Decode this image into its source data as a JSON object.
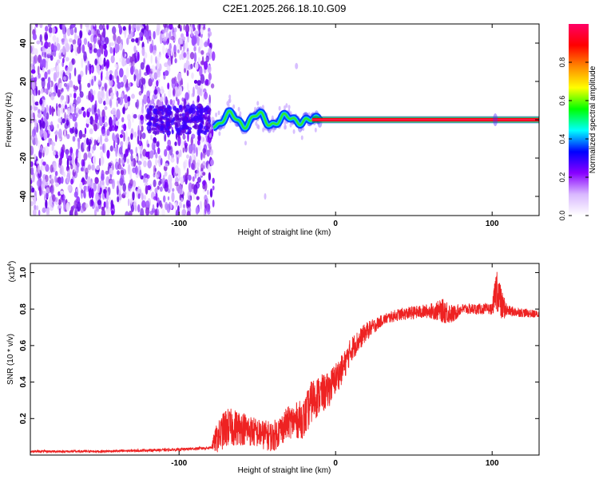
{
  "title": "C2E1.2025.266.18.10.G09",
  "chart_data": [
    {
      "type": "heatmap",
      "name": "spectrogram",
      "xlabel": "Height of straight line (km)",
      "ylabel": "Frequency (Hz)",
      "xlim": [
        -195,
        130
      ],
      "ylim": [
        -50,
        50
      ],
      "xticks": [
        -100,
        0,
        100
      ],
      "yticks": [
        -40,
        -20,
        0,
        20,
        40
      ],
      "noise_region_x": [
        -195,
        -78
      ],
      "signal_start_x": -78,
      "signal_frequency_hz": 0,
      "colorbar": {
        "label": "Normalized spectral amplitude",
        "range": [
          0,
          1
        ],
        "ticks": [
          "0.0",
          "0.2",
          "0.4",
          "0.6",
          "0.8"
        ],
        "tick_values": [
          0,
          0.2,
          0.4,
          0.6,
          0.8
        ],
        "colors": [
          "#ffffff",
          "#d9b8ff",
          "#8800ff",
          "#0000ff",
          "#00ffff",
          "#00ff00",
          "#ffff00",
          "#ff8800",
          "#ff0000",
          "#ff0066"
        ]
      }
    },
    {
      "type": "line",
      "name": "snr",
      "xlabel": "Height of straight line (km)",
      "ylabel": "SNR (10 * v/v)",
      "yscale_label": "(x10",
      "yscale_exp": "4",
      "yscale_close": ")",
      "xlim": [
        -195,
        130
      ],
      "ylim": [
        0,
        1.05
      ],
      "xticks": [
        -100,
        0,
        100
      ],
      "yticks": [
        0.2,
        0.4,
        0.6,
        0.8,
        1.0
      ],
      "ytick_labels": [
        "0.2",
        "0.4",
        "0.6",
        "0.8",
        "1.0"
      ],
      "color": "#ee2222",
      "envelope": {
        "x": [
          -195,
          -150,
          -100,
          -80,
          -76,
          -70,
          -60,
          -50,
          -40,
          -30,
          -20,
          -15,
          -10,
          -5,
          0,
          5,
          10,
          20,
          30,
          40,
          50,
          60,
          70,
          75,
          80,
          90,
          100,
          103,
          106,
          110,
          120,
          130
        ],
        "y": [
          0.02,
          0.02,
          0.03,
          0.04,
          0.09,
          0.15,
          0.15,
          0.12,
          0.1,
          0.18,
          0.2,
          0.3,
          0.33,
          0.35,
          0.42,
          0.48,
          0.58,
          0.68,
          0.74,
          0.77,
          0.78,
          0.79,
          0.79,
          0.77,
          0.8,
          0.8,
          0.8,
          0.92,
          0.82,
          0.79,
          0.78,
          0.77
        ]
      },
      "noise": {
        "x": [
          -195,
          -80,
          -76,
          -70,
          -50,
          -30,
          -15,
          0,
          10,
          30,
          60,
          70,
          80,
          100,
          103,
          110,
          130
        ],
        "amp": [
          0.006,
          0.008,
          0.08,
          0.11,
          0.08,
          0.09,
          0.12,
          0.09,
          0.07,
          0.03,
          0.04,
          0.07,
          0.03,
          0.03,
          0.13,
          0.03,
          0.02
        ]
      }
    }
  ]
}
